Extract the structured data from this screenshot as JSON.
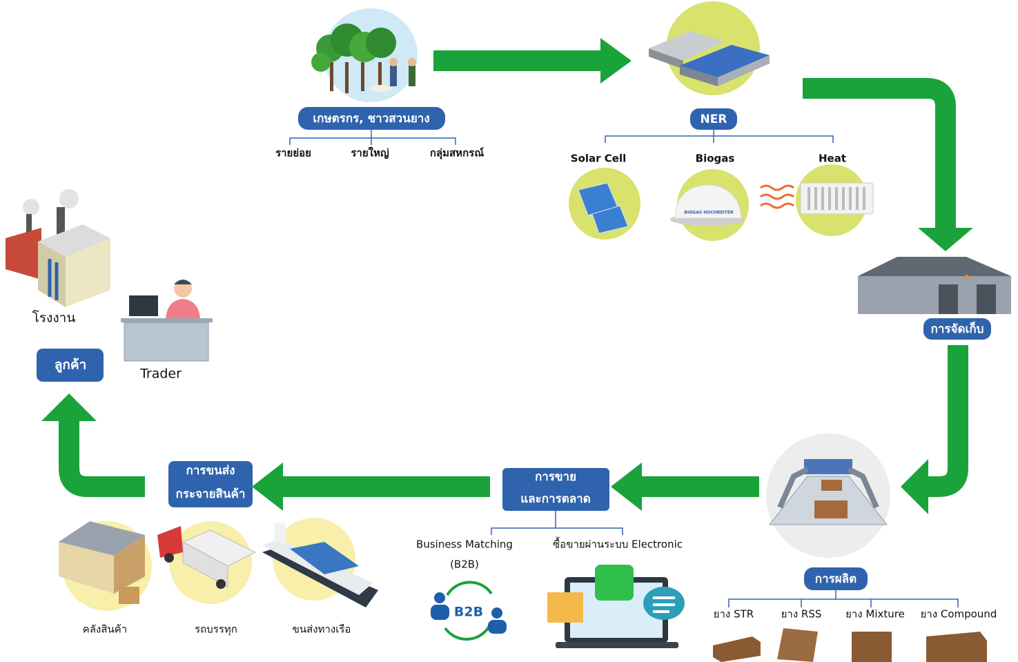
{
  "farmers": {
    "label": "เกษตรกร, ชาวสวนยาง",
    "groups": [
      "รายย่อย",
      "รายใหญ่",
      "กลุ่มสหกรณ์"
    ]
  },
  "ner": {
    "label": "NER",
    "sources": [
      "Solar Cell",
      "Biogas",
      "Heat"
    ],
    "biogas_brand": "BIOGAS HOCHREITER"
  },
  "storage": {
    "label": "การจัดเก็บ"
  },
  "production": {
    "label": "การผลิต",
    "products": [
      "ยาง STR",
      "ยาง RSS",
      "ยาง Mixture",
      "ยาง Compound"
    ]
  },
  "sales": {
    "label": [
      "การขาย",
      "และการตลาด"
    ],
    "channels": [
      {
        "label": [
          "Business Matching",
          "(B2B)"
        ],
        "icon": "B2B"
      },
      {
        "label": [
          "ซื้อขายผ่านระบบ Electronic"
        ],
        "icon": "LINE"
      }
    ]
  },
  "logistics": {
    "label": [
      "การขนส่ง",
      "กระจายสินค้า"
    ],
    "modes": [
      "คลังสินค้า",
      "รถบรรทุก",
      "ขนส่งทางเรือ"
    ]
  },
  "customer": {
    "label": "ลูกค้า",
    "types": [
      "โรงงาน",
      "Trader"
    ]
  }
}
